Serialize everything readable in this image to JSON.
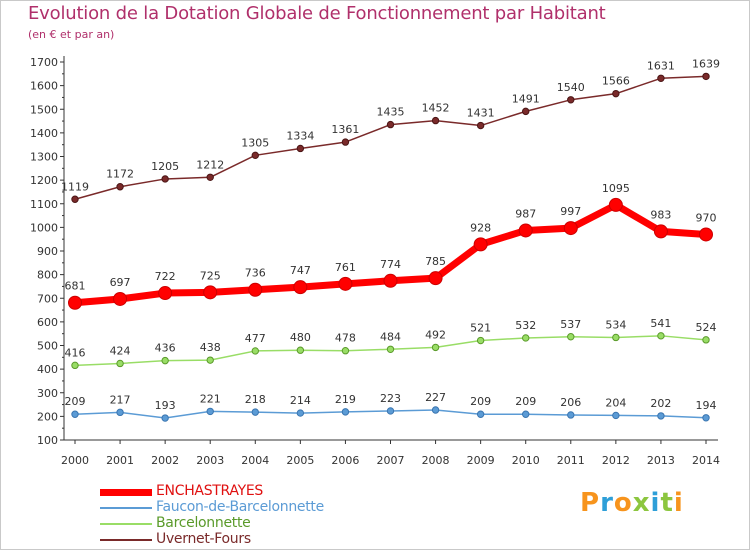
{
  "header": {
    "title": "Evolution de la Dotation Globale de Fonctionnement par Habitant",
    "subtitle": "(en € et par an)"
  },
  "chart_data": {
    "type": "line",
    "title": "Evolution de la Dotation Globale de Fonctionnement par Habitant",
    "subtitle": "(en € et par an)",
    "xlabel": "",
    "ylabel": "",
    "ylim": [
      100,
      1700
    ],
    "y_ticks": [
      100,
      200,
      300,
      400,
      500,
      600,
      700,
      800,
      900,
      1000,
      1100,
      1200,
      1300,
      1400,
      1500,
      1600,
      1700
    ],
    "categories": [
      "2000",
      "2001",
      "2002",
      "2003",
      "2004",
      "2005",
      "2006",
      "2007",
      "2008",
      "2009",
      "2010",
      "2011",
      "2012",
      "2013",
      "2014"
    ],
    "grid": false,
    "legend_position": "bottom-left",
    "series": [
      {
        "name": "ENCHASTRAYES",
        "color": "#ff0000",
        "values": [
          681,
          697,
          722,
          725,
          736,
          747,
          761,
          774,
          785,
          928,
          987,
          997,
          1095,
          983,
          970
        ]
      },
      {
        "name": "Faucon-de-Barcelonnette",
        "color": "#5b9bd5",
        "values": [
          209,
          217,
          193,
          221,
          218,
          214,
          219,
          223,
          227,
          209,
          209,
          206,
          204,
          202,
          194
        ]
      },
      {
        "name": "Barcelonnette",
        "color": "#99dd66",
        "values": [
          416,
          424,
          436,
          438,
          477,
          480,
          478,
          484,
          492,
          521,
          532,
          537,
          534,
          541,
          524
        ]
      },
      {
        "name": "Uvernet-Fours",
        "color": "#7a2a2a",
        "values": [
          1119,
          1172,
          1205,
          1212,
          1305,
          1334,
          1361,
          1435,
          1452,
          1431,
          1491,
          1540,
          1566,
          1631,
          1639
        ]
      }
    ]
  },
  "logo": {
    "text": "Proxiti",
    "colors": [
      "#f7941d",
      "#2e9fd8",
      "#f7941d",
      "#8cc63f",
      "#2e9fd8",
      "#8cc63f",
      "#f7941d"
    ]
  }
}
